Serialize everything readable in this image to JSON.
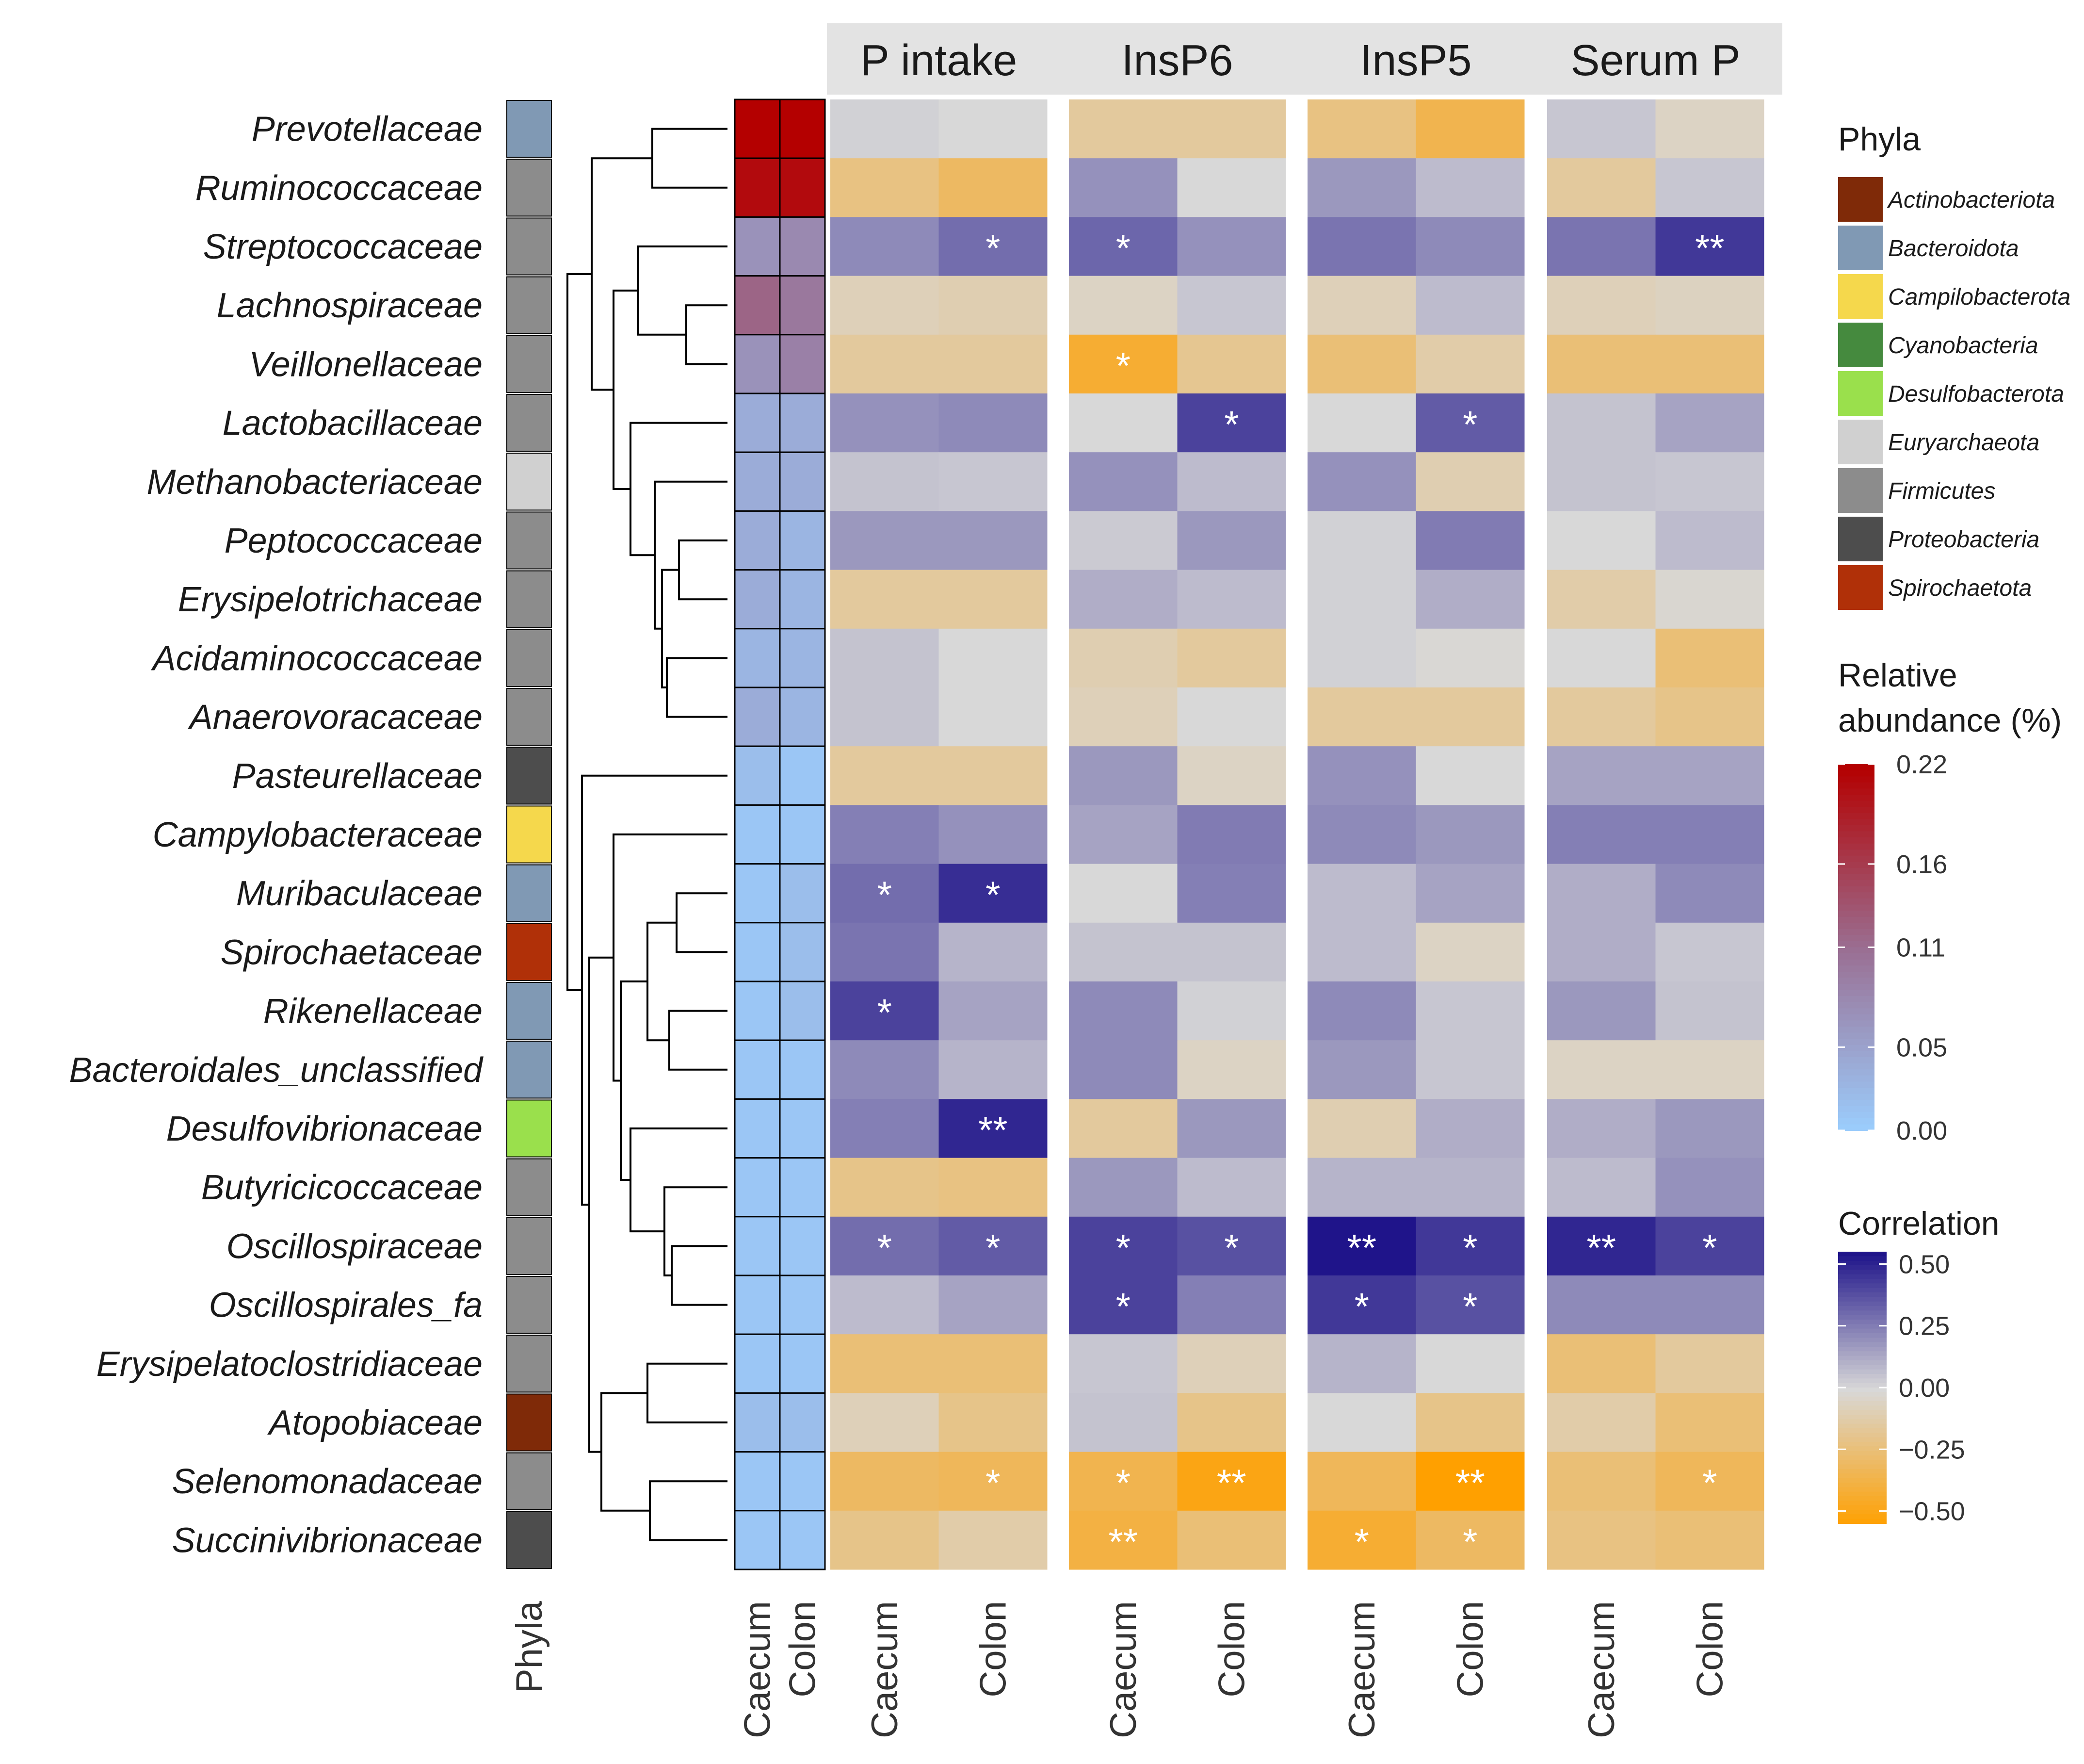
{
  "chart_data": {
    "type": "heatmap",
    "title": "",
    "families": [
      "Prevotellaceae",
      "Ruminococcaceae",
      "Streptococcaceae",
      "Lachnospiraceae",
      "Veillonellaceae",
      "Lactobacillaceae",
      "Methanobacteriaceae",
      "Peptococcaceae",
      "Erysipelotrichaceae",
      "Acidaminococcaceae",
      "Anaerovoracaceae",
      "Pasteurellaceae",
      "Campylobacteraceae",
      "Muribaculaceae",
      "Spirochaetaceae",
      "Rikenellaceae",
      "Bacteroidales_unclassified",
      "Desulfovibrionaceae",
      "Butyricicoccaceae",
      "Oscillospiraceae",
      "Oscillospirales_fa",
      "Erysipelatoclostridiaceae",
      "Atopobiaceae",
      "Selenomonadaceae",
      "Succinivibrionaceae"
    ],
    "phyla_of_family": [
      "Bacteroidota",
      "Firmicutes",
      "Firmicutes",
      "Firmicutes",
      "Firmicutes",
      "Firmicutes",
      "Euryarchaeota",
      "Firmicutes",
      "Firmicutes",
      "Firmicutes",
      "Firmicutes",
      "Proteobacteria",
      "Campilobacterota",
      "Bacteroidota",
      "Spirochaetota",
      "Bacteroidota",
      "Bacteroidota",
      "Desulfobacterota",
      "Firmicutes",
      "Firmicutes",
      "Firmicutes",
      "Firmicutes",
      "Actinobacteriota",
      "Firmicutes",
      "Proteobacteria"
    ],
    "phyla_column_label": "Phyla",
    "abundance_columns": [
      "Caecum",
      "Colon"
    ],
    "relative_abundance": [
      [
        0.22,
        0.22
      ],
      [
        0.21,
        0.21
      ],
      [
        0.07,
        0.08
      ],
      [
        0.12,
        0.1
      ],
      [
        0.07,
        0.09
      ],
      [
        0.04,
        0.04
      ],
      [
        0.04,
        0.04
      ],
      [
        0.04,
        0.03
      ],
      [
        0.04,
        0.03
      ],
      [
        0.03,
        0.03
      ],
      [
        0.04,
        0.03
      ],
      [
        0.02,
        0.01
      ],
      [
        0.01,
        0.01
      ],
      [
        0.01,
        0.02
      ],
      [
        0.01,
        0.02
      ],
      [
        0.01,
        0.02
      ],
      [
        0.01,
        0.01
      ],
      [
        0.01,
        0.01
      ],
      [
        0.01,
        0.01
      ],
      [
        0.01,
        0.01
      ],
      [
        0.01,
        0.01
      ],
      [
        0.01,
        0.01
      ],
      [
        0.02,
        0.02
      ],
      [
        0.01,
        0.01
      ],
      [
        0.01,
        0.01
      ]
    ],
    "correlation_groups": [
      "P intake",
      "InsP6",
      "InsP5",
      "Serum P"
    ],
    "correlation_columns": [
      "Caecum",
      "Colon"
    ],
    "correlation": [
      [
        [
          0.02,
          0.0
        ],
        [
          -0.15,
          -0.15
        ],
        [
          -0.22,
          -0.35
        ],
        [
          0.05,
          -0.05
        ]
      ],
      [
        [
          -0.22,
          -0.3
        ],
        [
          0.2,
          0.0
        ],
        [
          0.18,
          0.08
        ],
        [
          -0.15,
          0.05
        ]
      ],
      [
        [
          0.22,
          0.3
        ],
        [
          0.32,
          0.2
        ],
        [
          0.28,
          0.22
        ],
        [
          0.28,
          0.45
        ]
      ],
      [
        [
          -0.08,
          -0.1
        ],
        [
          -0.05,
          0.05
        ],
        [
          -0.08,
          0.08
        ],
        [
          -0.08,
          -0.06
        ]
      ],
      [
        [
          -0.15,
          -0.15
        ],
        [
          -0.42,
          -0.18
        ],
        [
          -0.25,
          -0.12
        ],
        [
          -0.25,
          -0.25
        ]
      ],
      [
        [
          0.2,
          0.22
        ],
        [
          0.0,
          0.42
        ],
        [
          0.0,
          0.35
        ],
        [
          0.06,
          0.15
        ]
      ],
      [
        [
          0.06,
          0.05
        ],
        [
          0.2,
          0.08
        ],
        [
          0.2,
          -0.1
        ],
        [
          0.06,
          0.05
        ]
      ],
      [
        [
          0.18,
          0.18
        ],
        [
          0.04,
          0.18
        ],
        [
          0.02,
          0.26
        ],
        [
          0.0,
          0.08
        ]
      ],
      [
        [
          -0.15,
          -0.15
        ],
        [
          0.12,
          0.08
        ],
        [
          0.02,
          0.12
        ],
        [
          -0.12,
          -0.02
        ]
      ],
      [
        [
          0.06,
          0.0
        ],
        [
          -0.1,
          -0.15
        ],
        [
          0.02,
          -0.01
        ],
        [
          0.0,
          -0.25
        ]
      ],
      [
        [
          0.06,
          0.0
        ],
        [
          -0.08,
          0.0
        ],
        [
          -0.15,
          -0.15
        ],
        [
          -0.15,
          -0.2
        ]
      ],
      [
        [
          -0.15,
          -0.15
        ],
        [
          0.18,
          -0.05
        ],
        [
          0.2,
          0.0
        ],
        [
          0.15,
          0.15
        ]
      ],
      [
        [
          0.25,
          0.2
        ],
        [
          0.15,
          0.26
        ],
        [
          0.22,
          0.18
        ],
        [
          0.25,
          0.25
        ]
      ],
      [
        [
          0.3,
          0.48
        ],
        [
          0.0,
          0.25
        ],
        [
          0.08,
          0.15
        ],
        [
          0.12,
          0.22
        ]
      ],
      [
        [
          0.28,
          0.1
        ],
        [
          0.06,
          0.06
        ],
        [
          0.08,
          -0.05
        ],
        [
          0.12,
          0.05
        ]
      ],
      [
        [
          0.42,
          0.15
        ],
        [
          0.22,
          0.02
        ],
        [
          0.22,
          0.05
        ],
        [
          0.18,
          0.06
        ]
      ],
      [
        [
          0.22,
          0.1
        ],
        [
          0.22,
          -0.05
        ],
        [
          0.18,
          0.05
        ],
        [
          -0.05,
          -0.05
        ]
      ],
      [
        [
          0.25,
          0.5
        ],
        [
          -0.15,
          0.18
        ],
        [
          -0.1,
          0.12
        ],
        [
          0.12,
          0.18
        ]
      ],
      [
        [
          -0.2,
          -0.22
        ],
        [
          0.18,
          0.08
        ],
        [
          0.1,
          0.1
        ],
        [
          0.08,
          0.2
        ]
      ],
      [
        [
          0.3,
          0.35
        ],
        [
          0.42,
          0.38
        ],
        [
          0.55,
          0.45
        ],
        [
          0.5,
          0.42
        ]
      ],
      [
        [
          0.08,
          0.15
        ],
        [
          0.42,
          0.25
        ],
        [
          0.45,
          0.38
        ],
        [
          0.22,
          0.22
        ]
      ],
      [
        [
          -0.25,
          -0.25
        ],
        [
          0.05,
          -0.08
        ],
        [
          0.1,
          0.0
        ],
        [
          -0.25,
          -0.15
        ]
      ],
      [
        [
          -0.08,
          -0.2
        ],
        [
          0.06,
          -0.2
        ],
        [
          0.0,
          -0.2
        ],
        [
          -0.12,
          -0.25
        ]
      ],
      [
        [
          -0.3,
          -0.32
        ],
        [
          -0.35,
          -0.5
        ],
        [
          -0.32,
          -0.55
        ],
        [
          -0.25,
          -0.32
        ]
      ],
      [
        [
          -0.2,
          -0.12
        ],
        [
          -0.38,
          -0.25
        ],
        [
          -0.42,
          -0.3
        ],
        [
          -0.22,
          -0.25
        ]
      ]
    ],
    "significance": [
      [
        [
          "",
          ""
        ],
        [
          "",
          ""
        ],
        [
          "",
          ""
        ],
        [
          "",
          ""
        ]
      ],
      [
        [
          "",
          ""
        ],
        [
          "",
          ""
        ],
        [
          "",
          ""
        ],
        [
          "",
          ""
        ]
      ],
      [
        [
          "",
          "*"
        ],
        [
          "*",
          ""
        ],
        [
          "",
          ""
        ],
        [
          "",
          "**"
        ]
      ],
      [
        [
          "",
          ""
        ],
        [
          "",
          ""
        ],
        [
          "",
          ""
        ],
        [
          "",
          ""
        ]
      ],
      [
        [
          "",
          ""
        ],
        [
          "*",
          ""
        ],
        [
          "",
          ""
        ],
        [
          "",
          ""
        ]
      ],
      [
        [
          "",
          ""
        ],
        [
          "",
          "*"
        ],
        [
          "",
          "*"
        ],
        [
          "",
          ""
        ]
      ],
      [
        [
          "",
          ""
        ],
        [
          "",
          ""
        ],
        [
          "",
          ""
        ],
        [
          "",
          ""
        ]
      ],
      [
        [
          "",
          ""
        ],
        [
          "",
          ""
        ],
        [
          "",
          ""
        ],
        [
          "",
          ""
        ]
      ],
      [
        [
          "",
          ""
        ],
        [
          "",
          ""
        ],
        [
          "",
          ""
        ],
        [
          "",
          ""
        ]
      ],
      [
        [
          "",
          ""
        ],
        [
          "",
          ""
        ],
        [
          "",
          ""
        ],
        [
          "",
          ""
        ]
      ],
      [
        [
          "",
          ""
        ],
        [
          "",
          ""
        ],
        [
          "",
          ""
        ],
        [
          "",
          ""
        ]
      ],
      [
        [
          "",
          ""
        ],
        [
          "",
          ""
        ],
        [
          "",
          ""
        ],
        [
          "",
          ""
        ]
      ],
      [
        [
          "",
          ""
        ],
        [
          "",
          ""
        ],
        [
          "",
          ""
        ],
        [
          "",
          ""
        ]
      ],
      [
        [
          "*",
          "*"
        ],
        [
          "",
          ""
        ],
        [
          "",
          ""
        ],
        [
          "",
          ""
        ]
      ],
      [
        [
          "",
          ""
        ],
        [
          "",
          ""
        ],
        [
          "",
          ""
        ],
        [
          "",
          ""
        ]
      ],
      [
        [
          "*",
          ""
        ],
        [
          "",
          ""
        ],
        [
          "",
          ""
        ],
        [
          "",
          ""
        ]
      ],
      [
        [
          "",
          ""
        ],
        [
          "",
          ""
        ],
        [
          "",
          ""
        ],
        [
          "",
          ""
        ]
      ],
      [
        [
          "",
          "**"
        ],
        [
          "",
          ""
        ],
        [
          "",
          ""
        ],
        [
          "",
          ""
        ]
      ],
      [
        [
          "",
          ""
        ],
        [
          "",
          ""
        ],
        [
          "",
          ""
        ],
        [
          "",
          ""
        ]
      ],
      [
        [
          "*",
          "*"
        ],
        [
          "*",
          "*"
        ],
        [
          "**",
          "*"
        ],
        [
          "**",
          "*"
        ]
      ],
      [
        [
          "",
          ""
        ],
        [
          "*",
          ""
        ],
        [
          "*",
          "*"
        ],
        [
          "",
          ""
        ]
      ],
      [
        [
          "",
          ""
        ],
        [
          "",
          ""
        ],
        [
          "",
          ""
        ],
        [
          "",
          ""
        ]
      ],
      [
        [
          "",
          ""
        ],
        [
          "",
          ""
        ],
        [
          "",
          ""
        ],
        [
          "",
          ""
        ]
      ],
      [
        [
          "",
          "*"
        ],
        [
          "*",
          "**"
        ],
        [
          "",
          "**"
        ],
        [
          "",
          "*"
        ]
      ],
      [
        [
          "",
          ""
        ],
        [
          "**",
          ""
        ],
        [
          "*",
          "*"
        ],
        [
          "",
          ""
        ]
      ]
    ],
    "legend_phyla": {
      "title": "Phyla",
      "items": [
        {
          "name": "Actinobacteriota",
          "color": "#7f2a08"
        },
        {
          "name": "Bacteroidota",
          "color": "#8099b4"
        },
        {
          "name": "Campilobacterota",
          "color": "#f5d84c"
        },
        {
          "name": "Cyanobacteria",
          "color": "#458a3e"
        },
        {
          "name": "Desulfobacterota",
          "color": "#9ae04c"
        },
        {
          "name": "Euryarchaeota",
          "color": "#d0d0d0"
        },
        {
          "name": "Firmicutes",
          "color": "#8c8c8c"
        },
        {
          "name": "Proteobacteria",
          "color": "#4d4d4d"
        },
        {
          "name": "Spirochaetota",
          "color": "#b03008"
        }
      ]
    },
    "legend_abundance": {
      "title_line1": "Relative",
      "title_line2": "abundance (%)",
      "ticks": [
        "0.22",
        "0.16",
        "0.11",
        "0.05",
        "0.00"
      ],
      "tick_values": [
        0.22,
        0.16,
        0.11,
        0.05,
        0.0
      ],
      "range": [
        0,
        0.22
      ],
      "color_low": "#9bcfff",
      "color_high": "#b40000"
    },
    "legend_correlation": {
      "title": "Correlation",
      "ticks": [
        "0.50",
        "0.25",
        "0.00",
        "−0.25",
        "−0.50"
      ],
      "tick_values": [
        0.5,
        0.25,
        0.0,
        -0.25,
        -0.5
      ],
      "range": [
        -0.55,
        0.55
      ],
      "color_positive": "#1f148a",
      "color_zero": "#d8d8d8",
      "color_negative": "#ffa000"
    }
  },
  "colors": {
    "strip_bg": "#e3e3e3",
    "dendrogram": "#000000"
  }
}
